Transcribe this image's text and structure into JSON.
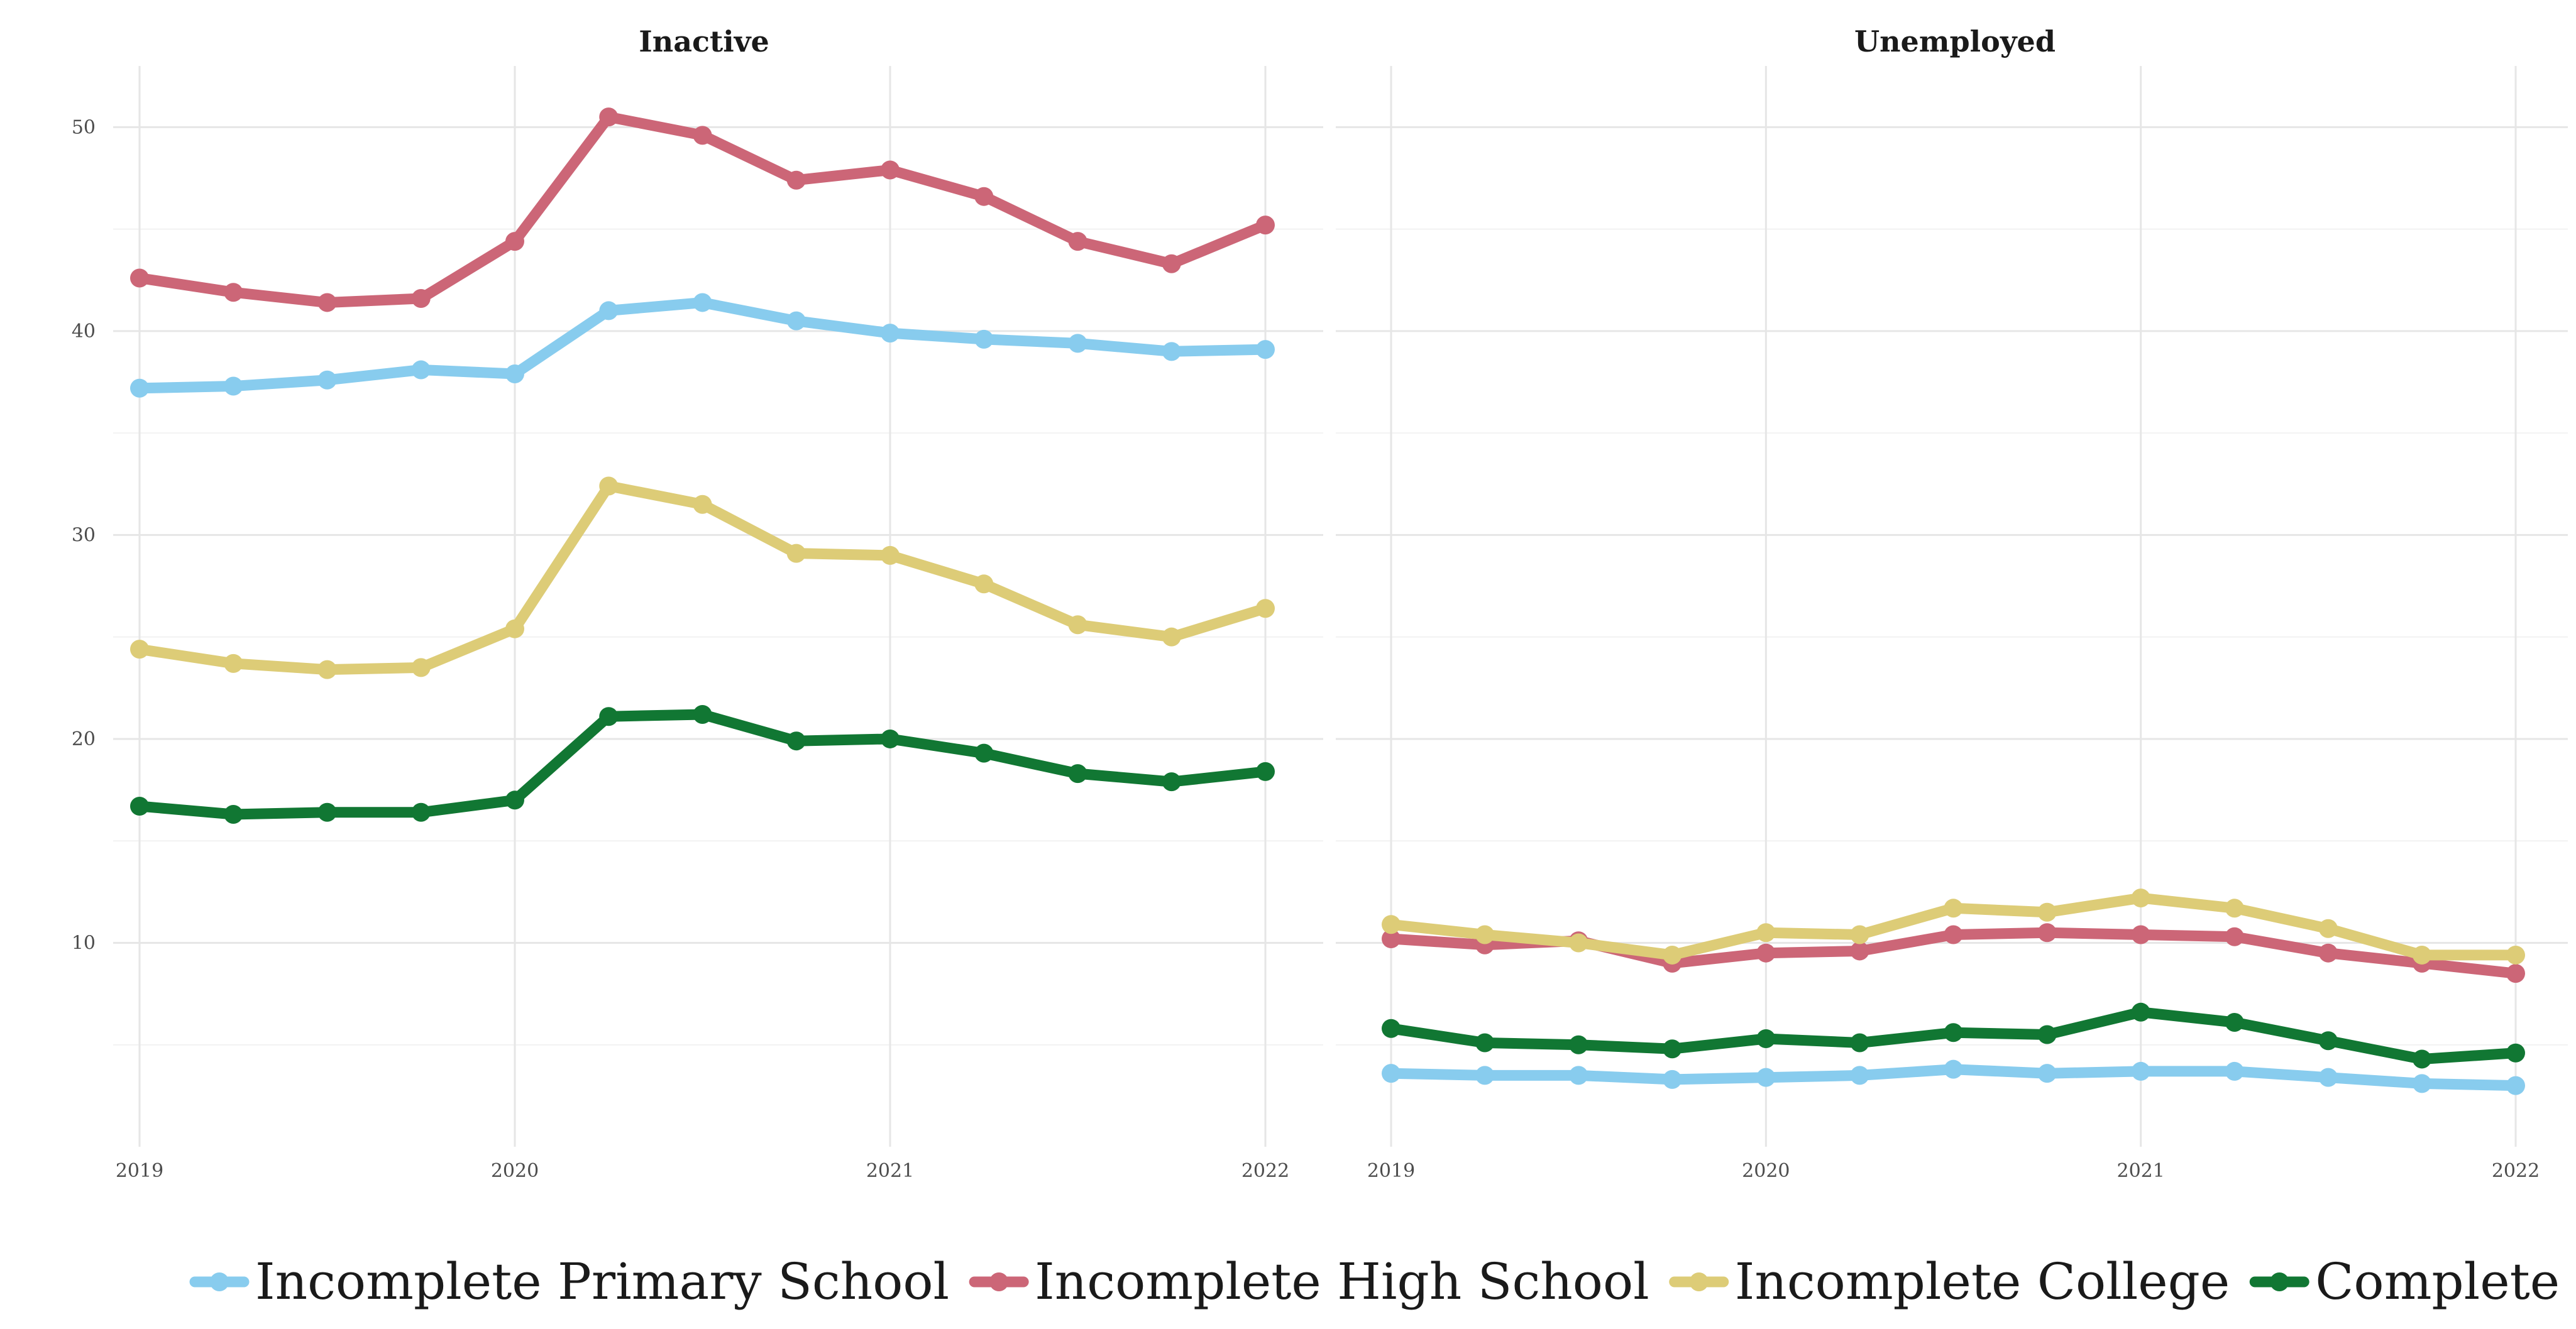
{
  "chart_data": [
    {
      "type": "line",
      "title": "Inactive",
      "xlabel": "",
      "ylabel": "",
      "x": [
        "2019 Q1",
        "2019 Q2",
        "2019 Q3",
        "2019 Q4",
        "2020 Q1",
        "2020 Q2",
        "2020 Q3",
        "2020 Q4",
        "2021 Q1",
        "2021 Q2",
        "2021 Q3",
        "2021 Q4",
        "2022 Q1"
      ],
      "x_ticks": [
        "2019",
        "2020",
        "2021",
        "2022"
      ],
      "y_ticks": [
        10,
        20,
        30,
        40,
        50
      ],
      "ylim": [
        0,
        53
      ],
      "grid": true,
      "series": [
        {
          "name": "Incomplete Primary School",
          "color": "#88CCEE",
          "values": [
            37.2,
            37.3,
            37.6,
            38.1,
            37.9,
            41.0,
            41.4,
            40.5,
            39.9,
            39.6,
            39.4,
            39.0,
            39.1
          ]
        },
        {
          "name": "Incomplete High School",
          "color": "#CC6677",
          "values": [
            42.6,
            41.9,
            41.4,
            41.6,
            44.4,
            50.5,
            49.6,
            47.4,
            47.9,
            46.6,
            44.4,
            43.3,
            45.2
          ]
        },
        {
          "name": "Incomplete College",
          "color": "#DDCC77",
          "values": [
            24.4,
            23.7,
            23.4,
            23.5,
            25.4,
            32.4,
            31.5,
            29.1,
            29.0,
            27.6,
            25.6,
            25.0,
            26.4
          ]
        },
        {
          "name": "Complete College",
          "color": "#117733",
          "values": [
            16.7,
            16.3,
            16.4,
            16.4,
            17.0,
            21.1,
            21.2,
            19.9,
            20.0,
            19.3,
            18.3,
            17.9,
            18.4
          ]
        }
      ]
    },
    {
      "type": "line",
      "title": "Unemployed",
      "xlabel": "",
      "ylabel": "",
      "x": [
        "2019 Q1",
        "2019 Q2",
        "2019 Q3",
        "2019 Q4",
        "2020 Q1",
        "2020 Q2",
        "2020 Q3",
        "2020 Q4",
        "2021 Q1",
        "2021 Q2",
        "2021 Q3",
        "2021 Q4",
        "2022 Q1"
      ],
      "x_ticks": [
        "2019",
        "2020",
        "2021",
        "2022"
      ],
      "y_ticks": [
        10,
        20,
        30,
        40,
        50
      ],
      "ylim": [
        0,
        53
      ],
      "grid": true,
      "series": [
        {
          "name": "Incomplete Primary School",
          "color": "#88CCEE",
          "values": [
            3.6,
            3.5,
            3.5,
            3.3,
            3.4,
            3.5,
            3.8,
            3.6,
            3.7,
            3.7,
            3.4,
            3.1,
            3.0
          ]
        },
        {
          "name": "Incomplete High School",
          "color": "#CC6677",
          "values": [
            10.2,
            9.9,
            10.1,
            9.0,
            9.5,
            9.6,
            10.4,
            10.5,
            10.4,
            10.3,
            9.5,
            9.0,
            8.5
          ]
        },
        {
          "name": "Incomplete College",
          "color": "#DDCC77",
          "values": [
            10.9,
            10.4,
            10.0,
            9.4,
            10.5,
            10.4,
            11.7,
            11.5,
            12.2,
            11.7,
            10.7,
            9.4,
            9.4
          ]
        },
        {
          "name": "Complete College",
          "color": "#117733",
          "values": [
            5.8,
            5.1,
            5.0,
            4.8,
            5.3,
            5.1,
            5.6,
            5.5,
            6.6,
            6.1,
            5.2,
            4.3,
            4.6
          ]
        }
      ]
    }
  ],
  "legend": {
    "placement": "bottom",
    "items": [
      {
        "label": "Incomplete Primary School",
        "color": "#88CCEE"
      },
      {
        "label": "Incomplete High School",
        "color": "#CC6677"
      },
      {
        "label": "Incomplete College",
        "color": "#DDCC77"
      },
      {
        "label": "Complete College",
        "color": "#117733"
      }
    ]
  }
}
